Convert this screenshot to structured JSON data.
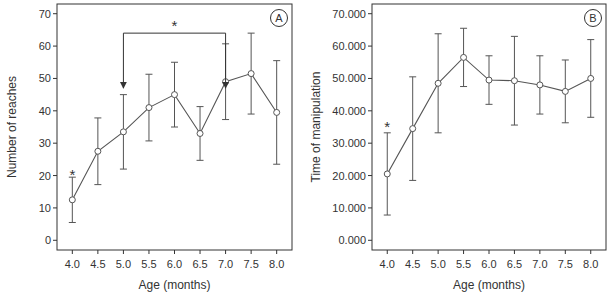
{
  "chart_data": [
    {
      "type": "line",
      "panel_label": "A",
      "x_label": "Age (months)",
      "y_label": "Number of reaches",
      "x": [
        4.0,
        4.5,
        5.0,
        5.5,
        6.0,
        6.5,
        7.0,
        7.5,
        8.0
      ],
      "series": [
        {
          "color": "#555555",
          "marker": "circle",
          "values": [
            12.5,
            27.5,
            33.5,
            41,
            45,
            33,
            49,
            51.5,
            39.5
          ],
          "errors": [
            7,
            10.3,
            11.5,
            10.3,
            10,
            8.3,
            11.7,
            12.5,
            16
          ]
        }
      ],
      "xlim": [
        3.7,
        8.3
      ],
      "ylim": [
        -3,
        73
      ],
      "xticks": [
        {
          "value": 4.0,
          "label": "4.0"
        },
        {
          "value": 4.5,
          "label": "4.5"
        },
        {
          "value": 5.0,
          "label": "5.0"
        },
        {
          "value": 5.5,
          "label": "5.5"
        },
        {
          "value": 6.0,
          "label": "6.0"
        },
        {
          "value": 6.5,
          "label": "6.5"
        },
        {
          "value": 7.0,
          "label": "7.0"
        },
        {
          "value": 7.5,
          "label": "7.5"
        },
        {
          "value": 8.0,
          "label": "8.0"
        }
      ],
      "yticks": [
        0,
        10,
        20,
        30,
        40,
        50,
        60,
        70
      ],
      "grid": false,
      "annotations": [
        {
          "text": "*",
          "x": 4.0,
          "y": 21
        }
      ],
      "brackets": [
        {
          "text": "*",
          "from": 5.0,
          "to": 7.0,
          "y": 64,
          "y_end": 47
        }
      ]
    },
    {
      "type": "line",
      "panel_label": "B",
      "x_label": "Age (months)",
      "y_label": "Time of manipulation",
      "x": [
        4.0,
        4.5,
        5.0,
        5.5,
        6.0,
        6.5,
        7.0,
        7.5,
        8.0
      ],
      "series": [
        {
          "color": "#555555",
          "marker": "circle",
          "values": [
            20.5,
            34.5,
            48.5,
            56.5,
            49.5,
            49.3,
            48,
            46,
            50
          ],
          "errors": [
            12.7,
            16,
            15.3,
            9,
            7.5,
            13.7,
            9,
            9.7,
            12
          ]
        }
      ],
      "xlim": [
        3.7,
        8.3
      ],
      "ylim": [
        -3,
        73
      ],
      "xticks": [
        {
          "value": 4.0,
          "label": "4.0"
        },
        {
          "value": 4.5,
          "label": "4.5"
        },
        {
          "value": 5.0,
          "label": "5.0"
        },
        {
          "value": 5.5,
          "label": "5.5"
        },
        {
          "value": 6.0,
          "label": "6.0"
        },
        {
          "value": 6.5,
          "label": "6.5"
        },
        {
          "value": 7.0,
          "label": "7.0"
        },
        {
          "value": 7.5,
          "label": "7.5"
        },
        {
          "value": 8.0,
          "label": "8.0"
        }
      ],
      "yticks": [
        {
          "value": 0,
          "label": "0.000"
        },
        {
          "value": 10,
          "label": "10.000"
        },
        {
          "value": 20,
          "label": "20.000"
        },
        {
          "value": 30,
          "label": "30.000"
        },
        {
          "value": 40,
          "label": "40.000"
        },
        {
          "value": 50,
          "label": "50.000"
        },
        {
          "value": 60,
          "label": "60.000"
        },
        {
          "value": 70,
          "label": "70.000"
        }
      ],
      "grid": false,
      "annotations": [
        {
          "text": "*",
          "x": 4.0,
          "y": 36
        }
      ],
      "brackets": []
    }
  ]
}
